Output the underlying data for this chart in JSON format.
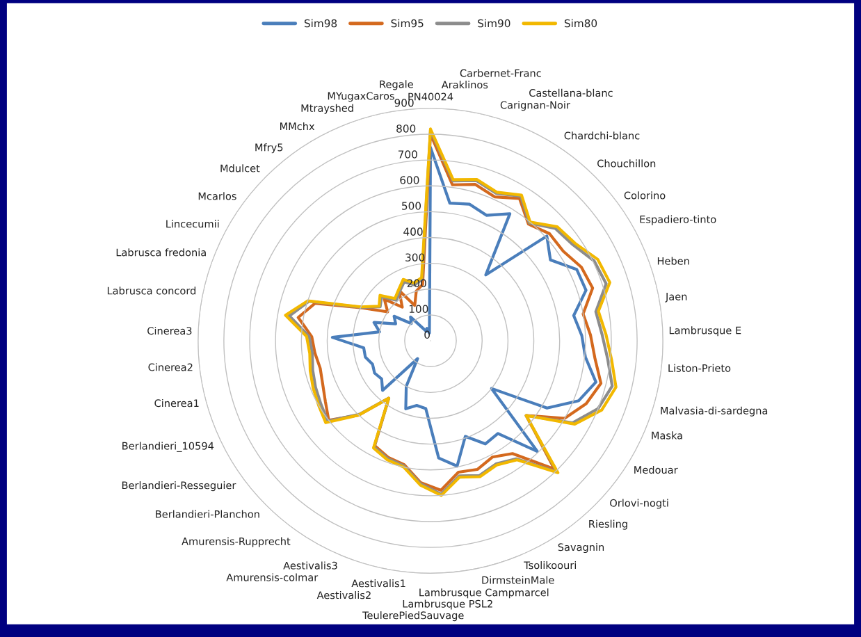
{
  "chart_data": {
    "type": "radar",
    "categories": [
      "PN40024",
      "Araklinos",
      "Carbernet-Franc",
      "Carignan-Noir",
      "Castellana-blanc",
      "Chardchi-blanc",
      "Chouchillon",
      "Colorino",
      "Espadiero-tinto",
      "Heben",
      "Jaen",
      "Lambrusque E",
      "Liston-Prieto",
      "Malvasia-di-sardegna",
      "Maska",
      "Medouar",
      "Orlovi-nogti",
      "Riesling",
      "Savagnin",
      "Tsolikoouri",
      "DirmsteinMale",
      "Lambrusque Campmarcel",
      "Lambrusque PSL2",
      "TeulerePiedSauvage",
      "Aestivalis1",
      "Aestivalis2",
      "Aestivalis3",
      "Amurensis-colmar",
      "Amurensis-Rupprecht",
      "Berlandieri-Planchon",
      "Berlandieri-Resseguier",
      "Berlandieri_10594",
      "Cinerea1",
      "Cinerea2",
      "Cinerea3",
      "Labrusca concord",
      "Labrusca fredonia",
      "Lincecumii",
      "Mcarlos",
      "Mdulcet",
      "Mfry5",
      "MMchx",
      "Mtrayshed",
      "MYugaxCaros",
      "Regale"
    ],
    "series": [
      {
        "name": "Sim98",
        "color": "#4a7ebb",
        "values": [
          748,
          538,
          550,
          532,
          580,
          333,
          606,
          560,
          630,
          633,
          563,
          586,
          603,
          660,
          619,
          521,
          300,
          595,
          444,
          452,
          394,
          496,
          455,
          263,
          256,
          280,
          200,
          85,
          267,
          240,
          250,
          242,
          260,
          260,
          380,
          200,
          230,
          150,
          170,
          100,
          120,
          60,
          40,
          50,
          30
        ]
      },
      {
        "name": "Sim95",
        "color": "#d4691e",
        "values": [
          800,
          610,
          630,
          610,
          650,
          590,
          620,
          620,
          650,
          660,
          600,
          620,
          640,
          680,
          650,
          600,
          470,
          690,
          540,
          510,
          530,
          520,
          580,
          550,
          490,
          480,
          460,
          275,
          400,
          500,
          470,
          450,
          440,
          450,
          460,
          520,
          470,
          290,
          200,
          240,
          170,
          230,
          150,
          200,
          220
        ]
      },
      {
        "name": "Sim90",
        "color": "#8c8c8c",
        "values": [
          815,
          625,
          645,
          625,
          660,
          595,
          650,
          665,
          705,
          715,
          650,
          665,
          690,
          725,
          700,
          635,
          470,
          705,
          565,
          540,
          555,
          535,
          595,
          555,
          495,
          485,
          465,
          275,
          395,
          505,
          490,
          480,
          470,
          460,
          470,
          555,
          495,
          295,
          235,
          255,
          205,
          225,
          250,
          225,
          240
        ]
      },
      {
        "name": "Sim80",
        "color": "#f2b800",
        "values": [
          820,
          630,
          650,
          630,
          665,
          600,
          660,
          675,
          720,
          730,
          660,
          680,
          705,
          740,
          715,
          645,
          470,
          710,
          570,
          545,
          560,
          540,
          600,
          560,
          500,
          490,
          470,
          275,
          400,
          515,
          500,
          490,
          480,
          470,
          480,
          570,
          500,
          300,
          240,
          263,
          214,
          233,
          260,
          233,
          247
        ]
      }
    ],
    "ylim": [
      0,
      900
    ],
    "yticks": [
      0,
      100,
      200,
      300,
      400,
      500,
      600,
      700,
      800,
      900
    ],
    "grid": "y",
    "legend": "top",
    "line_style": "solid"
  }
}
